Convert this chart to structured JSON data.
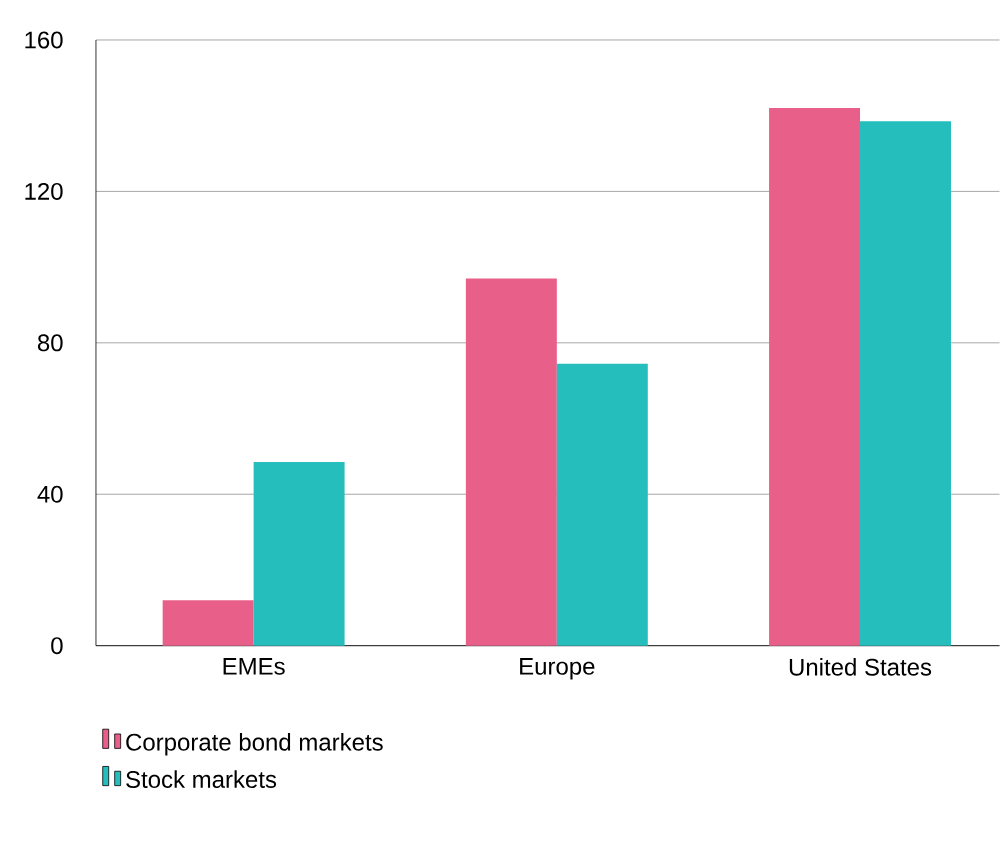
{
  "chart_data": {
    "type": "bar",
    "categories": [
      "EMEs",
      "Europe",
      "United States"
    ],
    "series": [
      {
        "name": "Corporate bond markets",
        "color": "#e8608a",
        "values": [
          12,
          97,
          142
        ]
      },
      {
        "name": "Stock markets",
        "color": "#26bdbd",
        "values": [
          48.5,
          74.5,
          138.5
        ]
      }
    ],
    "ylim": [
      0,
      160
    ],
    "yticks": [
      0,
      40,
      80,
      120,
      160
    ],
    "grid": "y",
    "legend": "bottom left"
  }
}
